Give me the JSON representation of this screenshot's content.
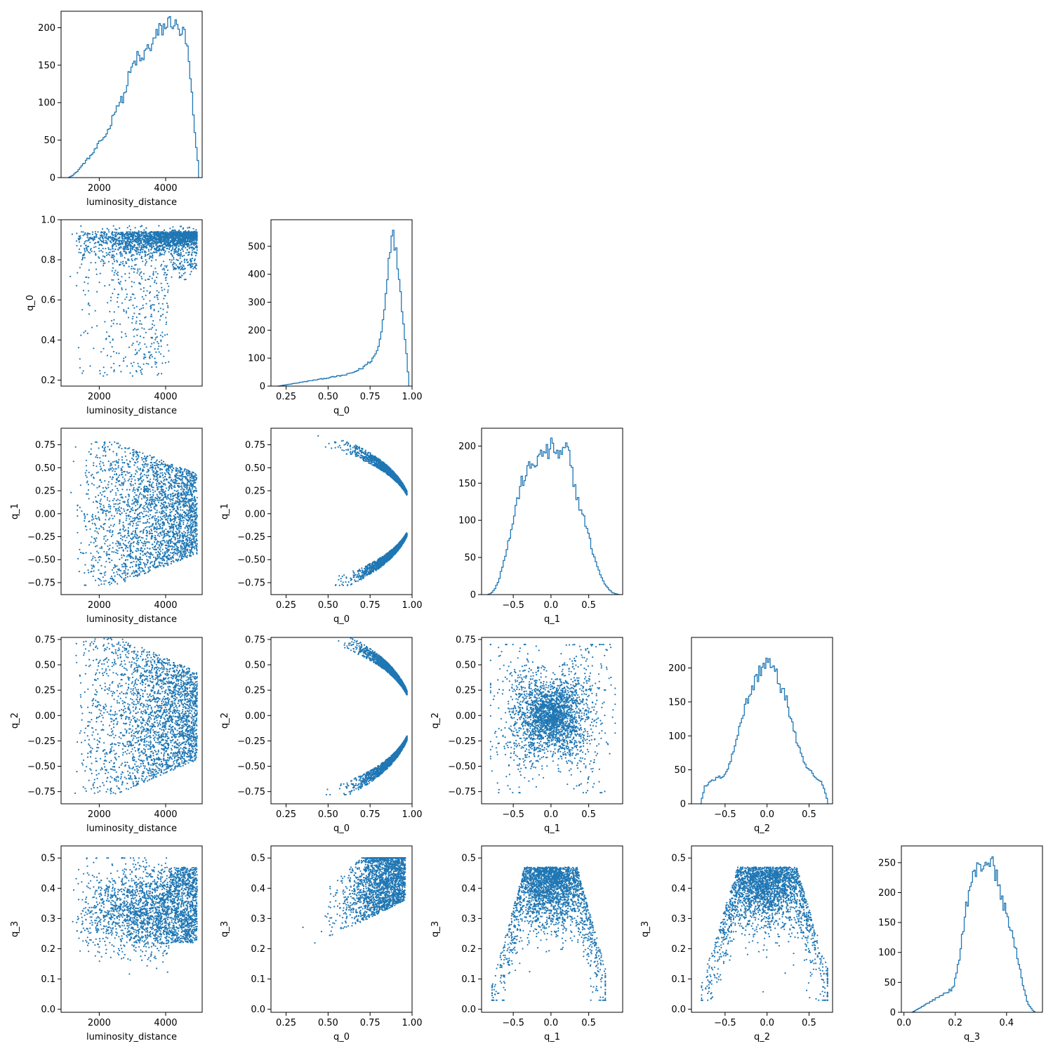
{
  "colors": {
    "series": "#1f77b4",
    "axes": "#000000",
    "background": "#ffffff"
  },
  "chart_data": [
    {
      "id": "hist-luminosity_distance",
      "type": "histogram",
      "row": 0,
      "col": 0,
      "xlabel": "luminosity_distance",
      "ylabel": "",
      "xlim": [
        850,
        5100
      ],
      "ylim": [
        0,
        222
      ],
      "xticks": [
        2000,
        4000
      ],
      "xtick_labels": [
        "2000",
        "4000"
      ],
      "yticks": [
        0,
        50,
        100,
        150,
        200
      ],
      "ytick_labels": [
        "0",
        "50",
        "100",
        "150",
        "200"
      ],
      "x": [
        1050,
        1180,
        1310,
        1440,
        1570,
        1700,
        1830,
        1960,
        2090,
        2220,
        2350,
        2480,
        2610,
        2740,
        2870,
        3000,
        3130,
        3260,
        3390,
        3520,
        3650,
        3780,
        3910,
        4040,
        4170,
        4300,
        4430,
        4560,
        4650,
        4750,
        4850,
        4930,
        4990
      ],
      "values": [
        0,
        3,
        8,
        15,
        22,
        28,
        35,
        45,
        52,
        60,
        75,
        95,
        100,
        110,
        135,
        150,
        160,
        155,
        170,
        175,
        185,
        195,
        200,
        205,
        210,
        200,
        195,
        190,
        165,
        120,
        60,
        30,
        0
      ]
    },
    {
      "id": "hist-q_0",
      "type": "histogram",
      "row": 1,
      "col": 1,
      "xlabel": "q_0",
      "ylabel": "",
      "xlim": [
        0.16,
        1.0
      ],
      "ylim": [
        0,
        595
      ],
      "xticks": [
        0.25,
        0.5,
        0.75,
        1.0
      ],
      "xtick_labels": [
        "0.25",
        "0.50",
        "0.75",
        "1.00"
      ],
      "yticks": [
        0,
        100,
        200,
        300,
        400,
        500
      ],
      "ytick_labels": [
        "0",
        "100",
        "200",
        "300",
        "400",
        "500"
      ],
      "x": [
        0.2,
        0.25,
        0.3,
        0.35,
        0.4,
        0.45,
        0.5,
        0.55,
        0.6,
        0.65,
        0.7,
        0.75,
        0.78,
        0.8,
        0.82,
        0.84,
        0.86,
        0.875,
        0.89,
        0.91,
        0.93,
        0.95,
        0.97,
        0.98
      ],
      "values": [
        0,
        5,
        10,
        15,
        20,
        25,
        30,
        35,
        40,
        50,
        65,
        90,
        115,
        150,
        220,
        340,
        470,
        565,
        510,
        440,
        320,
        200,
        60,
        0
      ]
    },
    {
      "id": "hist-q_1",
      "type": "histogram",
      "row": 2,
      "col": 2,
      "xlabel": "q_1",
      "ylabel": "",
      "xlim": [
        -0.92,
        0.95
      ],
      "ylim": [
        0,
        224
      ],
      "xticks": [
        -0.5,
        0.0,
        0.5
      ],
      "xtick_labels": [
        "−0.5",
        "0.0",
        "0.5"
      ],
      "yticks": [
        0,
        50,
        100,
        150,
        200
      ],
      "ytick_labels": [
        "0",
        "50",
        "100",
        "150",
        "200"
      ],
      "x": [
        -0.85,
        -0.8,
        -0.75,
        -0.7,
        -0.65,
        -0.6,
        -0.55,
        -0.5,
        -0.45,
        -0.4,
        -0.35,
        -0.3,
        -0.25,
        -0.2,
        -0.15,
        -0.1,
        -0.05,
        0.0,
        0.05,
        0.1,
        0.15,
        0.2,
        0.25,
        0.3,
        0.35,
        0.4,
        0.45,
        0.5,
        0.55,
        0.6,
        0.65,
        0.7,
        0.75,
        0.8,
        0.85,
        0.9
      ],
      "values": [
        0,
        2,
        8,
        20,
        40,
        60,
        80,
        105,
        130,
        150,
        160,
        170,
        175,
        180,
        185,
        195,
        190,
        200,
        195,
        185,
        190,
        200,
        175,
        150,
        125,
        110,
        95,
        75,
        55,
        40,
        25,
        15,
        8,
        3,
        1,
        0
      ]
    },
    {
      "id": "hist-q_2",
      "type": "histogram",
      "row": 3,
      "col": 3,
      "xlabel": "q_2",
      "ylabel": "",
      "xlim": [
        -0.9,
        0.78
      ],
      "ylim": [
        0,
        245
      ],
      "xticks": [
        -0.5,
        0.0,
        0.5
      ],
      "xtick_labels": [
        "−0.5",
        "0.0",
        "0.5"
      ],
      "yticks": [
        0,
        50,
        100,
        150,
        200
      ],
      "ytick_labels": [
        "0",
        "50",
        "100",
        "150",
        "200"
      ],
      "x": [
        -0.8,
        -0.75,
        -0.7,
        -0.65,
        -0.6,
        -0.55,
        -0.5,
        -0.45,
        -0.4,
        -0.35,
        -0.3,
        -0.25,
        -0.2,
        -0.15,
        -0.1,
        -0.05,
        0.0,
        0.05,
        0.1,
        0.15,
        0.2,
        0.25,
        0.3,
        0.35,
        0.4,
        0.45,
        0.5,
        0.55,
        0.6,
        0.65,
        0.7,
        0.72
      ],
      "values": [
        0,
        25,
        30,
        35,
        38,
        40,
        45,
        60,
        80,
        110,
        130,
        150,
        165,
        180,
        195,
        205,
        210,
        200,
        190,
        175,
        160,
        140,
        115,
        90,
        70,
        55,
        50,
        40,
        35,
        30,
        10,
        0
      ]
    },
    {
      "id": "hist-q_3",
      "type": "histogram",
      "row": 4,
      "col": 4,
      "xlabel": "q_3",
      "ylabel": "",
      "xlim": [
        -0.01,
        0.54
      ],
      "ylim": [
        0,
        278
      ],
      "xticks": [
        0.0,
        0.2,
        0.4
      ],
      "xtick_labels": [
        "0.0",
        "0.2",
        "0.4"
      ],
      "yticks": [
        0,
        50,
        100,
        150,
        200,
        250
      ],
      "ytick_labels": [
        "0",
        "50",
        "100",
        "150",
        "200",
        "250"
      ],
      "x": [
        0.03,
        0.05,
        0.07,
        0.09,
        0.11,
        0.13,
        0.15,
        0.17,
        0.19,
        0.21,
        0.225,
        0.24,
        0.255,
        0.27,
        0.285,
        0.3,
        0.315,
        0.33,
        0.345,
        0.36,
        0.375,
        0.39,
        0.405,
        0.42,
        0.435,
        0.45,
        0.465,
        0.48,
        0.5,
        0.51
      ],
      "values": [
        0,
        5,
        10,
        15,
        20,
        25,
        30,
        35,
        40,
        80,
        130,
        175,
        210,
        230,
        240,
        245,
        250,
        255,
        245,
        225,
        195,
        175,
        155,
        130,
        100,
        70,
        40,
        15,
        3,
        0
      ]
    },
    {
      "id": "scatter-lumdist-q_0",
      "type": "scatter",
      "row": 1,
      "col": 0,
      "xlabel": "luminosity_distance",
      "ylabel": "q_0",
      "xlim": [
        850,
        5100
      ],
      "ylim": [
        0.17,
        1.0
      ],
      "xticks": [
        2000,
        4000
      ],
      "xtick_labels": [
        "2000",
        "4000"
      ],
      "yticks": [
        0.2,
        0.4,
        0.6,
        0.8,
        1.0
      ],
      "ytick_labels": [
        "0.2",
        "0.4",
        "0.6",
        "0.8",
        "1.0"
      ],
      "shape": "lumdist-q0"
    },
    {
      "id": "scatter-lumdist-q_1",
      "type": "scatter",
      "row": 2,
      "col": 0,
      "xlabel": "luminosity_distance",
      "ylabel": "q_1",
      "xlim": [
        850,
        5100
      ],
      "ylim": [
        -0.88,
        0.93
      ],
      "xticks": [
        2000,
        4000
      ],
      "xtick_labels": [
        "2000",
        "4000"
      ],
      "yticks": [
        -0.75,
        -0.5,
        -0.25,
        0.0,
        0.25,
        0.5,
        0.75
      ],
      "ytick_labels": [
        "−0.75",
        "−0.50",
        "−0.25",
        "0.00",
        "0.25",
        "0.50",
        "0.75"
      ],
      "shape": "lumdist-qx"
    },
    {
      "id": "scatter-q_0-q_1",
      "type": "scatter",
      "row": 2,
      "col": 1,
      "xlabel": "q_0",
      "ylabel": "q_1",
      "xlim": [
        0.16,
        1.0
      ],
      "ylim": [
        -0.88,
        0.93
      ],
      "xticks": [
        0.25,
        0.5,
        0.75,
        1.0
      ],
      "xtick_labels": [
        "0.25",
        "0.50",
        "0.75",
        "1.00"
      ],
      "yticks": [
        -0.75,
        -0.5,
        -0.25,
        0.0,
        0.25,
        0.5,
        0.75
      ],
      "ytick_labels": [
        "−0.75",
        "−0.50",
        "−0.25",
        "0.00",
        "0.25",
        "0.50",
        "0.75"
      ],
      "shape": "q0-arc"
    },
    {
      "id": "scatter-lumdist-q_2",
      "type": "scatter",
      "row": 3,
      "col": 0,
      "xlabel": "luminosity_distance",
      "ylabel": "q_2",
      "xlim": [
        850,
        5100
      ],
      "ylim": [
        -0.87,
        0.77
      ],
      "xticks": [
        2000,
        4000
      ],
      "xtick_labels": [
        "2000",
        "4000"
      ],
      "yticks": [
        -0.75,
        -0.5,
        -0.25,
        0.0,
        0.25,
        0.5,
        0.75
      ],
      "ytick_labels": [
        "−0.75",
        "−0.50",
        "−0.25",
        "0.00",
        "0.25",
        "0.50",
        "0.75"
      ],
      "shape": "lumdist-qx"
    },
    {
      "id": "scatter-q_0-q_2",
      "type": "scatter",
      "row": 3,
      "col": 1,
      "xlabel": "q_0",
      "ylabel": "q_2",
      "xlim": [
        0.16,
        1.0
      ],
      "ylim": [
        -0.87,
        0.77
      ],
      "xticks": [
        0.25,
        0.5,
        0.75,
        1.0
      ],
      "xtick_labels": [
        "0.25",
        "0.50",
        "0.75",
        "1.00"
      ],
      "yticks": [
        -0.75,
        -0.5,
        -0.25,
        0.0,
        0.25,
        0.5,
        0.75
      ],
      "ytick_labels": [
        "−0.75",
        "−0.50",
        "−0.25",
        "0.00",
        "0.25",
        "0.50",
        "0.75"
      ],
      "shape": "q0-arc"
    },
    {
      "id": "scatter-q_1-q_2",
      "type": "scatter",
      "row": 3,
      "col": 2,
      "xlabel": "q_1",
      "ylabel": "q_2",
      "xlim": [
        -0.92,
        0.95
      ],
      "ylim": [
        -0.87,
        0.77
      ],
      "xticks": [
        -0.5,
        0.0,
        0.5
      ],
      "xtick_labels": [
        "−0.5",
        "0.0",
        "0.5"
      ],
      "yticks": [
        -0.75,
        -0.5,
        -0.25,
        0.0,
        0.25,
        0.5,
        0.75
      ],
      "ytick_labels": [
        "−0.75",
        "−0.50",
        "−0.25",
        "0.00",
        "0.25",
        "0.50",
        "0.75"
      ],
      "shape": "bowtie"
    },
    {
      "id": "scatter-lumdist-q_3",
      "type": "scatter",
      "row": 4,
      "col": 0,
      "xlabel": "luminosity_distance",
      "ylabel": "q_3",
      "xlim": [
        850,
        5100
      ],
      "ylim": [
        -0.01,
        0.54
      ],
      "xticks": [
        2000,
        4000
      ],
      "xtick_labels": [
        "2000",
        "4000"
      ],
      "yticks": [
        0.0,
        0.1,
        0.2,
        0.3,
        0.4,
        0.5
      ],
      "ytick_labels": [
        "0.0",
        "0.1",
        "0.2",
        "0.3",
        "0.4",
        "0.5"
      ],
      "shape": "lumdist-q3"
    },
    {
      "id": "scatter-q_0-q_3",
      "type": "scatter",
      "row": 4,
      "col": 1,
      "xlabel": "q_0",
      "ylabel": "q_3",
      "xlim": [
        0.16,
        1.0
      ],
      "ylim": [
        -0.01,
        0.54
      ],
      "xticks": [
        0.25,
        0.5,
        0.75,
        1.0
      ],
      "xtick_labels": [
        "0.25",
        "0.50",
        "0.75",
        "1.00"
      ],
      "yticks": [
        0.0,
        0.1,
        0.2,
        0.3,
        0.4,
        0.5
      ],
      "ytick_labels": [
        "0.0",
        "0.1",
        "0.2",
        "0.3",
        "0.4",
        "0.5"
      ],
      "shape": "q0-q3"
    },
    {
      "id": "scatter-q_1-q_3",
      "type": "scatter",
      "row": 4,
      "col": 2,
      "xlabel": "q_1",
      "ylabel": "q_3",
      "xlim": [
        -0.92,
        0.95
      ],
      "ylim": [
        -0.01,
        0.54
      ],
      "xticks": [
        -0.5,
        0.0,
        0.5
      ],
      "xtick_labels": [
        "−0.5",
        "0.0",
        "0.5"
      ],
      "yticks": [
        0.0,
        0.1,
        0.2,
        0.3,
        0.4,
        0.5
      ],
      "ytick_labels": [
        "0.0",
        "0.1",
        "0.2",
        "0.3",
        "0.4",
        "0.5"
      ],
      "shape": "dome"
    },
    {
      "id": "scatter-q_2-q_3",
      "type": "scatter",
      "row": 4,
      "col": 3,
      "xlabel": "q_2",
      "ylabel": "q_3",
      "xlim": [
        -0.9,
        0.78
      ],
      "ylim": [
        -0.01,
        0.54
      ],
      "xticks": [
        -0.5,
        0.0,
        0.5
      ],
      "xtick_labels": [
        "−0.5",
        "0.0",
        "0.5"
      ],
      "yticks": [
        0.0,
        0.1,
        0.2,
        0.3,
        0.4,
        0.5
      ],
      "ytick_labels": [
        "0.0",
        "0.1",
        "0.2",
        "0.3",
        "0.4",
        "0.5"
      ],
      "shape": "dome"
    }
  ]
}
